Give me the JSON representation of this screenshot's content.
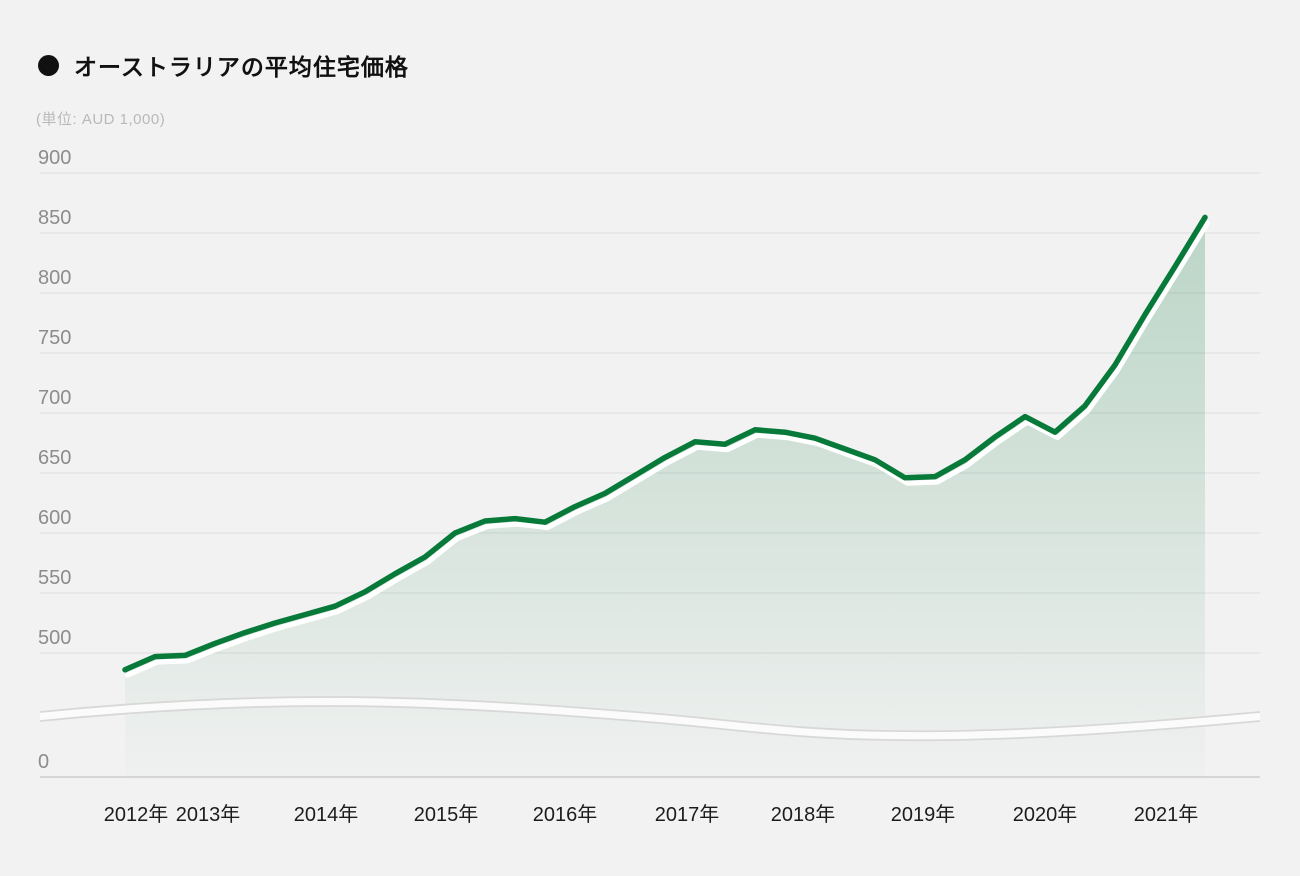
{
  "page": {
    "background": "#f2f2f2"
  },
  "header": {
    "title": "オーストラリアの平均住宅価格",
    "subtitle": "(単位: AUD 1,000)"
  },
  "chart_data": {
    "type": "area",
    "title": "オーストラリアの平均住宅価格",
    "unit": "AUD 1,000",
    "frequency": "quarterly",
    "period_start": "2012-Q2",
    "period_end": "2021-Q2",
    "x_tick_labels": [
      "2012年",
      "2013年",
      "2014年",
      "2015年",
      "2016年",
      "2017年",
      "2018年",
      "2019年",
      "2020年",
      "2021年"
    ],
    "y_tick_labels": [
      "900",
      "850",
      "800",
      "750",
      "700",
      "650",
      "600",
      "550",
      "500",
      "0"
    ],
    "ylim": [
      0,
      900
    ],
    "y_axis_break": true,
    "grid": true,
    "legend": "none",
    "series": [
      {
        "name": "平均住宅価格",
        "values": [
          486,
          497,
          498,
          508,
          517,
          525,
          532,
          539,
          551,
          566,
          580,
          600,
          610,
          612,
          609,
          622,
          633,
          648,
          663,
          676,
          674,
          686,
          684,
          679,
          670,
          661,
          646,
          647,
          661,
          680,
          697,
          684,
          706,
          740,
          782,
          822,
          863
        ]
      }
    ],
    "colors": {
      "line": "#077a3a",
      "fill_top": "rgba(10,122,60,0.24)",
      "fill_bottom": "rgba(10,122,60,0.01)",
      "line_shadow": "#ffffff",
      "grid": "#e2e2e2",
      "zero_line": "#d6d6d6",
      "axis_break_line": "#d8d8d8",
      "axis_break_band": "#fbfbfb",
      "x_label": "#1c1c1c",
      "y_label": "#8c8c8c",
      "title": "#111111",
      "subtitle": "#b9b9b9",
      "background": "#f2f2f2"
    }
  }
}
